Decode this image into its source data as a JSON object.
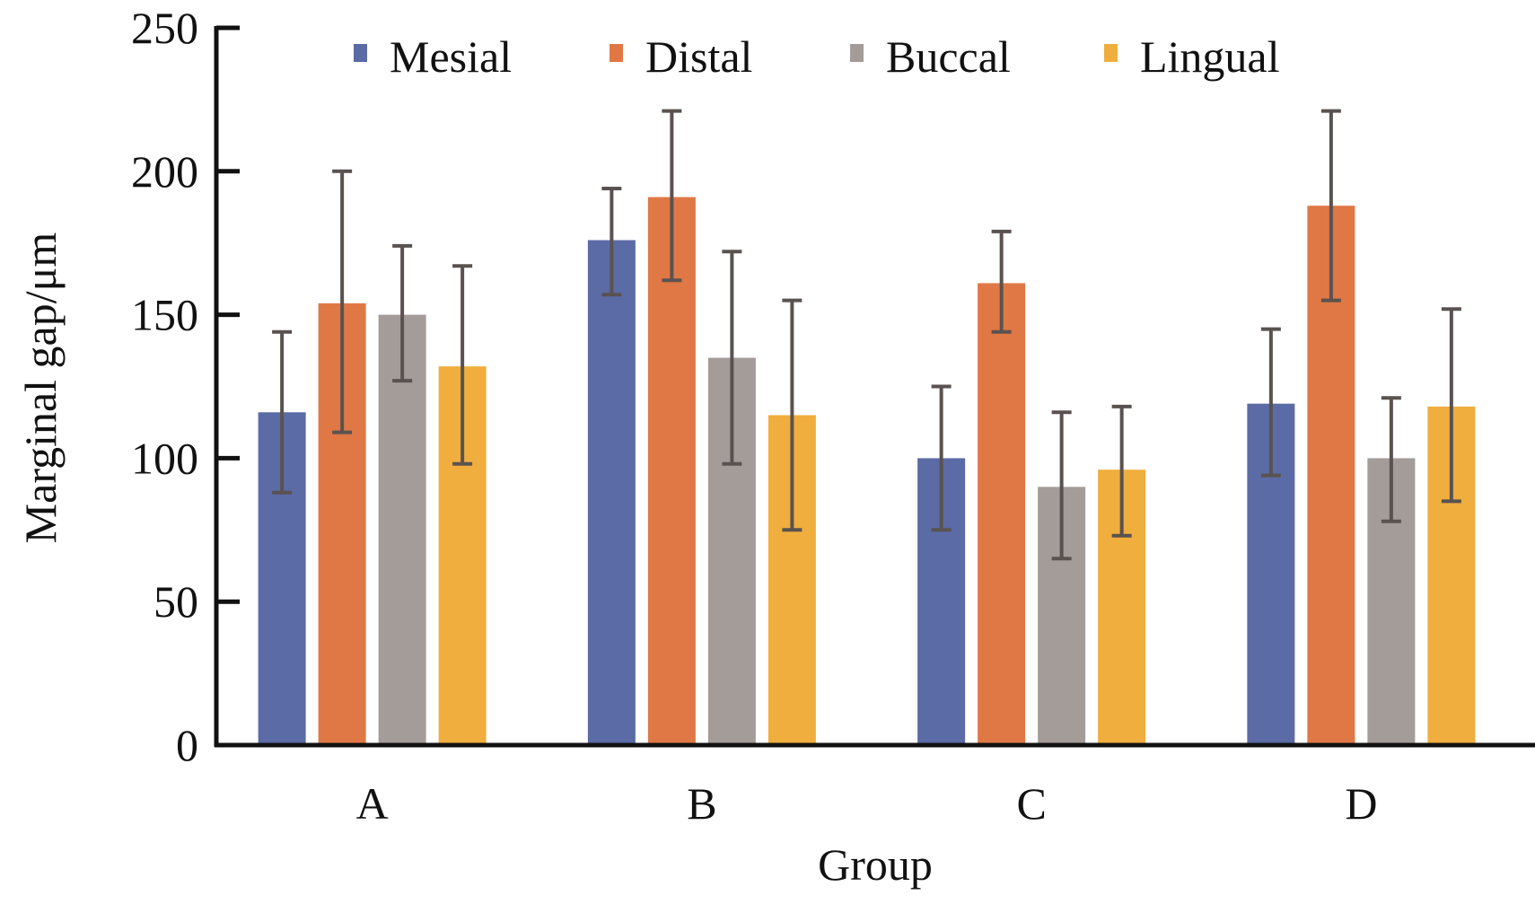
{
  "chart_data": {
    "type": "bar",
    "title": "",
    "xlabel": "Group",
    "ylabel": "Marginal gap/μm",
    "ylim": [
      0,
      250
    ],
    "yticks": [
      0,
      50,
      100,
      150,
      200,
      250
    ],
    "grid": false,
    "legend_position": "top",
    "categories": [
      "A",
      "B",
      "C",
      "D"
    ],
    "series": [
      {
        "name": "Mesial",
        "color": "#5B6BA6",
        "values": [
          116,
          176,
          100,
          119
        ],
        "error_low": [
          88,
          157,
          75,
          94
        ],
        "error_high": [
          144,
          194,
          125,
          145
        ]
      },
      {
        "name": "Distal",
        "color": "#E07845",
        "values": [
          154,
          191,
          161,
          188
        ],
        "error_low": [
          109,
          162,
          144,
          155
        ],
        "error_high": [
          200,
          221,
          179,
          221
        ]
      },
      {
        "name": "Buccal",
        "color": "#A39C98",
        "values": [
          150,
          135,
          90,
          100
        ],
        "error_low": [
          127,
          98,
          65,
          78
        ],
        "error_high": [
          174,
          172,
          116,
          121
        ]
      },
      {
        "name": "Lingual",
        "color": "#F0AE3E",
        "values": [
          132,
          115,
          96,
          118
        ],
        "error_low": [
          98,
          75,
          73,
          85
        ],
        "error_high": [
          167,
          155,
          118,
          152
        ]
      }
    ],
    "error_bar_color": "#5A5250"
  }
}
